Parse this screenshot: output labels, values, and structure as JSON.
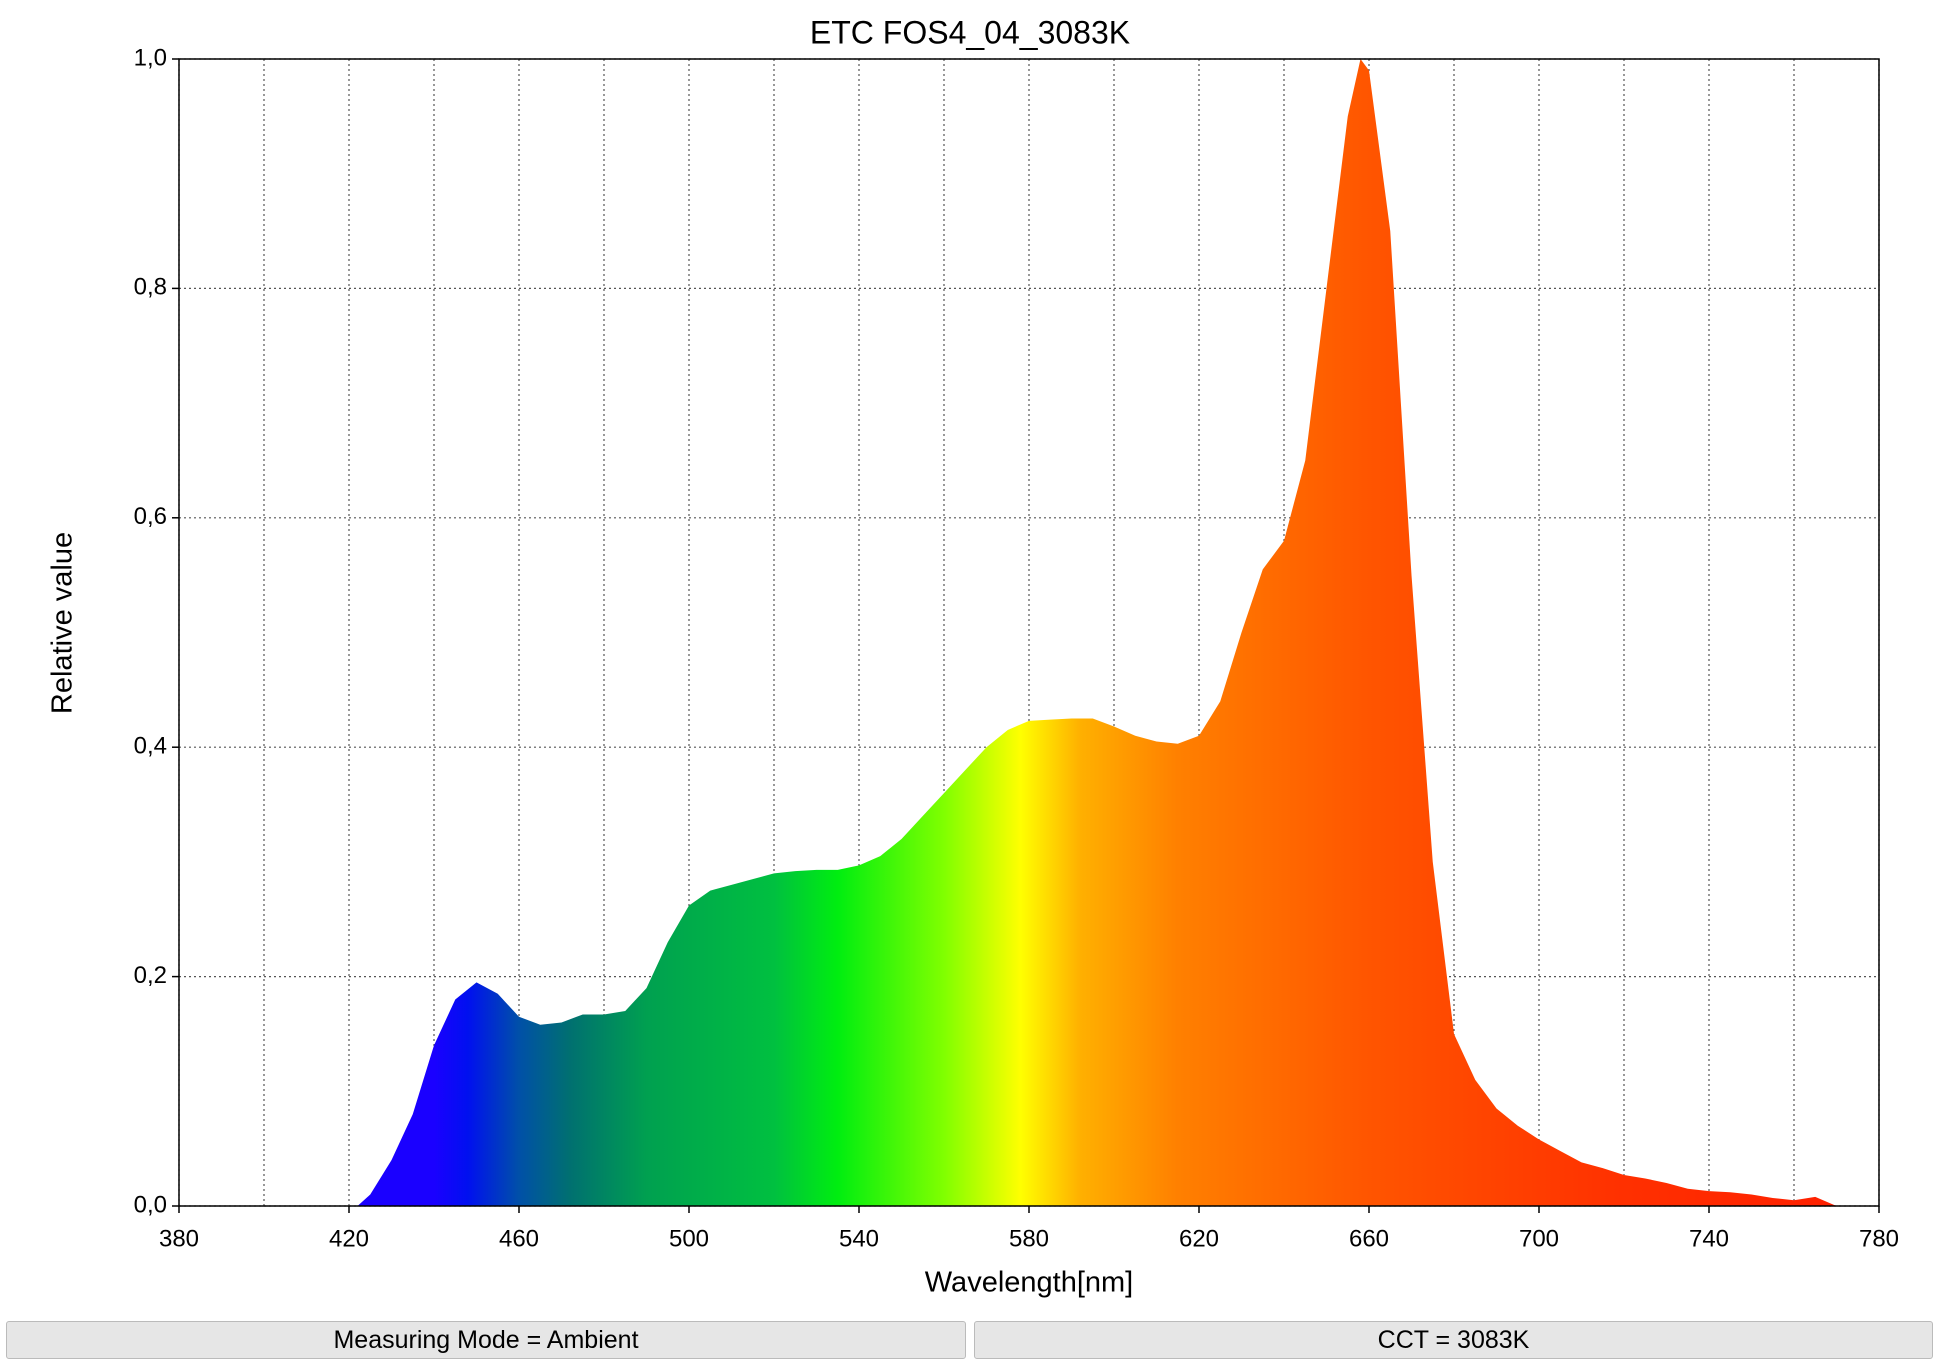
{
  "chart_data": {
    "type": "area",
    "title": "ETC FOS4_04_3083K",
    "xlabel": "Wavelength[nm]",
    "ylabel": "Relative value",
    "x": [
      422,
      425,
      430,
      435,
      440,
      445,
      450,
      455,
      460,
      465,
      470,
      475,
      480,
      485,
      490,
      495,
      500,
      505,
      510,
      515,
      520,
      525,
      530,
      535,
      540,
      545,
      550,
      555,
      560,
      565,
      570,
      575,
      580,
      585,
      590,
      595,
      600,
      605,
      610,
      615,
      620,
      625,
      630,
      635,
      640,
      645,
      650,
      655,
      658,
      660,
      665,
      670,
      675,
      680,
      685,
      690,
      695,
      700,
      705,
      710,
      715,
      720,
      725,
      730,
      735,
      740,
      745,
      750,
      755,
      760,
      765,
      770
    ],
    "values": [
      0,
      0.01,
      0.04,
      0.08,
      0.14,
      0.18,
      0.195,
      0.185,
      0.165,
      0.158,
      0.16,
      0.167,
      0.167,
      0.17,
      0.19,
      0.23,
      0.262,
      0.275,
      0.28,
      0.285,
      0.29,
      0.292,
      0.293,
      0.293,
      0.297,
      0.305,
      0.32,
      0.34,
      0.36,
      0.38,
      0.4,
      0.415,
      0.423,
      0.424,
      0.425,
      0.425,
      0.418,
      0.41,
      0.405,
      0.403,
      0.41,
      0.44,
      0.5,
      0.555,
      0.58,
      0.65,
      0.8,
      0.95,
      1.0,
      0.99,
      0.85,
      0.55,
      0.3,
      0.15,
      0.11,
      0.085,
      0.07,
      0.058,
      0.048,
      0.038,
      0.033,
      0.027,
      0.024,
      0.02,
      0.015,
      0.013,
      0.012,
      0.01,
      0.007,
      0.005,
      0.008,
      0
    ],
    "gradient": [
      {
        "x": 440,
        "color": "#1a00ff"
      },
      {
        "x": 448,
        "color": "#0010f0"
      },
      {
        "x": 460,
        "color": "#0050a8"
      },
      {
        "x": 472,
        "color": "#007070"
      },
      {
        "x": 490,
        "color": "#00a050"
      },
      {
        "x": 520,
        "color": "#00c040"
      },
      {
        "x": 535,
        "color": "#00ee10"
      },
      {
        "x": 560,
        "color": "#80ff00"
      },
      {
        "x": 578,
        "color": "#ffff00"
      },
      {
        "x": 592,
        "color": "#ffb000"
      },
      {
        "x": 615,
        "color": "#ff8000"
      },
      {
        "x": 660,
        "color": "#ff5500"
      },
      {
        "x": 720,
        "color": "#ff3000"
      },
      {
        "x": 770,
        "color": "#ff2000"
      }
    ],
    "xlim": [
      380,
      780
    ],
    "xticks": [
      380,
      420,
      460,
      500,
      540,
      580,
      620,
      660,
      700,
      740,
      780
    ],
    "xminorticks": [
      400,
      440,
      480,
      520,
      560,
      600,
      640,
      680,
      720,
      760
    ],
    "ylim": [
      0,
      1
    ],
    "yticks": [
      {
        "value": 0,
        "label": "0,0"
      },
      {
        "value": 0.2,
        "label": "0,2"
      },
      {
        "value": 0.4,
        "label": "0,4"
      },
      {
        "value": 0.6,
        "label": "0,6"
      },
      {
        "value": 0.8,
        "label": "0,8"
      },
      {
        "value": 1,
        "label": "1,0"
      }
    ],
    "grid": true
  },
  "status_bar": [
    "Measuring Mode = Ambient",
    "CCT = 3083K"
  ]
}
